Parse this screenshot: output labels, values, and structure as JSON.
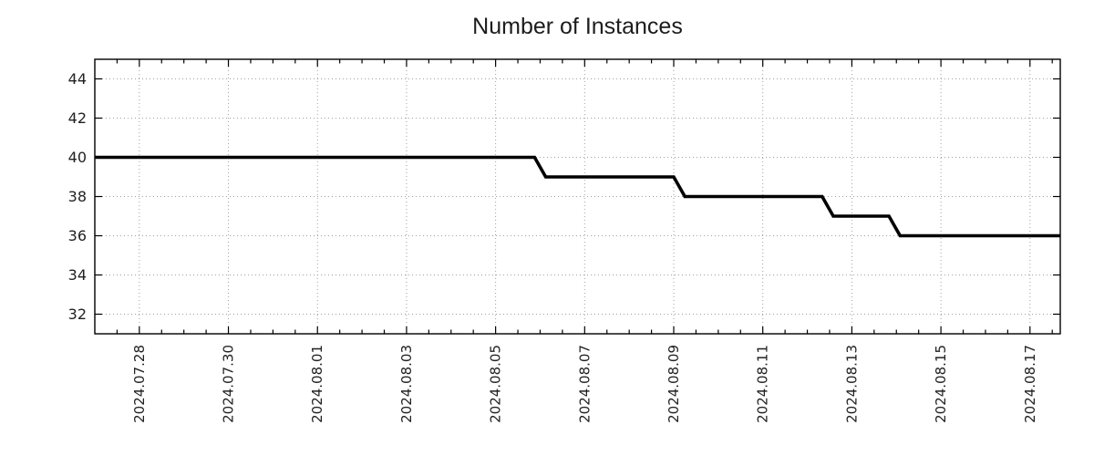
{
  "chart_data": {
    "type": "line",
    "title": "Number of Instances",
    "xlabel": "",
    "ylabel": "",
    "legend": "none",
    "grid": "dotted, both axes, at major ticks",
    "x_axis": {
      "start_date": "2024-07-27 00:00",
      "xlim_days": [
        0,
        21.68
      ],
      "minor_tick_interval_days": 0.5,
      "major_ticks": [
        {
          "label": "2024.07.28",
          "day": 1
        },
        {
          "label": "2024.07.30",
          "day": 3
        },
        {
          "label": "2024.08.01",
          "day": 5
        },
        {
          "label": "2024.08.03",
          "day": 7
        },
        {
          "label": "2024.08.05",
          "day": 9
        },
        {
          "label": "2024.08.07",
          "day": 11
        },
        {
          "label": "2024.08.09",
          "day": 13
        },
        {
          "label": "2024.08.11",
          "day": 15
        },
        {
          "label": "2024.08.13",
          "day": 17
        },
        {
          "label": "2024.08.15",
          "day": 19
        },
        {
          "label": "2024.08.17",
          "day": 21
        }
      ]
    },
    "y_axis": {
      "ylim": [
        31,
        45
      ],
      "ticks": [
        32,
        34,
        36,
        38,
        40,
        42,
        44
      ]
    },
    "series": [
      {
        "name": "Number of Instances",
        "color": "#000000",
        "points": [
          {
            "date": "2024-07-27 00:00",
            "day": 0,
            "value": 40
          },
          {
            "date": "2024-08-05 21:00",
            "day": 9.875,
            "value": 40
          },
          {
            "date": "2024-08-06 03:00",
            "day": 10.125,
            "value": 39
          },
          {
            "date": "2024-08-09 00:00",
            "day": 13.0,
            "value": 39
          },
          {
            "date": "2024-08-09 06:00",
            "day": 13.25,
            "value": 38
          },
          {
            "date": "2024-08-12 08:00",
            "day": 16.333,
            "value": 38
          },
          {
            "date": "2024-08-12 14:00",
            "day": 16.583,
            "value": 37
          },
          {
            "date": "2024-08-13 20:00",
            "day": 17.833,
            "value": 37
          },
          {
            "date": "2024-08-14 02:00",
            "day": 18.083,
            "value": 36
          },
          {
            "date": "2024-08-17 16:20",
            "day": 21.68,
            "value": 36
          }
        ]
      }
    ],
    "style": {
      "background_color": "#ffffff",
      "grid_color": "#a0a0a0",
      "axis_color": "#000000",
      "text_color": "#212121",
      "line_color": "#000000",
      "line_width": 3.6
    }
  }
}
